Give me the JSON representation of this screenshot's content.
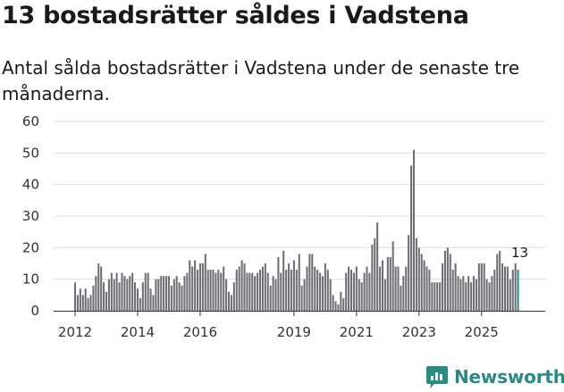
{
  "title": "13 bostadsrätter såldes i Vadstena",
  "subtitle": "Antal sålda bostadsrätter i Vadstena under de senaste tre månaderna.",
  "brand": "Newsworthy",
  "colors": {
    "bar": "#6f6e74",
    "highlight": "#2a8a84",
    "grid": "#dedede",
    "axis": "#333333",
    "brand": "#2a8a84"
  },
  "chart_data": {
    "type": "bar",
    "title": "13 bostadsrätter såldes i Vadstena",
    "xlabel": "",
    "ylabel": "",
    "ylim": [
      0,
      60
    ],
    "yticks": [
      0,
      10,
      20,
      30,
      40,
      50,
      60
    ],
    "start": "2012-01",
    "xtick_labels": [
      "2012",
      "2014",
      "2016",
      "2019",
      "2021",
      "2023",
      "2025"
    ],
    "xtick_years": [
      2012,
      2014,
      2016,
      2019,
      2021,
      2023,
      2025
    ],
    "values": [
      9,
      5,
      7,
      5,
      7,
      4,
      5,
      8,
      11,
      15,
      14,
      9,
      6,
      10,
      12,
      10,
      12,
      9,
      12,
      11,
      10,
      11,
      12,
      9,
      7,
      4,
      9,
      12,
      12,
      7,
      5,
      10,
      10,
      11,
      11,
      11,
      11,
      8,
      10,
      11,
      9,
      8,
      11,
      12,
      16,
      14,
      16,
      13,
      15,
      15,
      18,
      13,
      13,
      13,
      12,
      13,
      12,
      14,
      10,
      6,
      5,
      9,
      13,
      14,
      16,
      15,
      12,
      12,
      12,
      11,
      12,
      13,
      14,
      15,
      12,
      8,
      11,
      10,
      17,
      12,
      19,
      13,
      15,
      13,
      16,
      13,
      18,
      8,
      10,
      14,
      18,
      18,
      14,
      13,
      12,
      11,
      15,
      13,
      10,
      5,
      3,
      2,
      6,
      4,
      12,
      14,
      13,
      12,
      14,
      10,
      9,
      12,
      14,
      12,
      21,
      23,
      28,
      14,
      16,
      10,
      17,
      17,
      22,
      14,
      14,
      8,
      11,
      14,
      24,
      46,
      51,
      23,
      20,
      18,
      16,
      14,
      13,
      9,
      9,
      9,
      9,
      15,
      19,
      20,
      18,
      13,
      15,
      11,
      10,
      11,
      9,
      11,
      9,
      11,
      10,
      15,
      15,
      15,
      10,
      9,
      11,
      13,
      18,
      19,
      15,
      14,
      14,
      10,
      13,
      15,
      13
    ],
    "highlight_last": true,
    "last_label": "13"
  }
}
